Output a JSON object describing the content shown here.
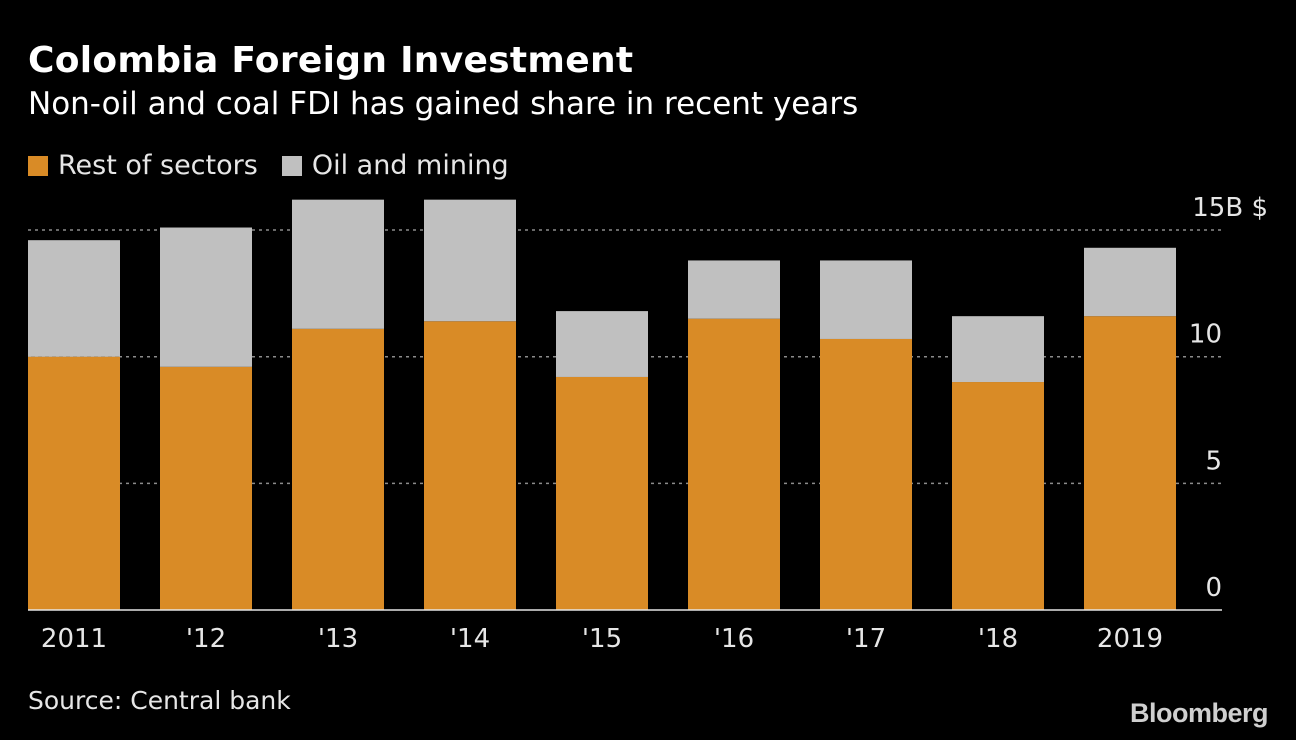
{
  "header": {
    "title": "Colombia Foreign Investment",
    "subtitle": "Non-oil and coal FDI has gained share in recent years"
  },
  "legend": {
    "items": [
      {
        "label": "Rest of sectors",
        "color": "#D98B26"
      },
      {
        "label": "Oil and mining",
        "color": "#C0C0C0"
      }
    ]
  },
  "footer": {
    "source": "Source: Central bank",
    "brand": "Bloomberg"
  },
  "chart_data": {
    "type": "bar",
    "stacked": true,
    "title": "Colombia Foreign Investment",
    "subtitle": "Non-oil and coal FDI has gained share in recent years",
    "categories": [
      "2011",
      "'12",
      "'13",
      "'14",
      "'15",
      "'16",
      "'17",
      "'18",
      "2019"
    ],
    "series": [
      {
        "name": "Rest of sectors",
        "color": "#D98B26",
        "values": [
          10.0,
          9.6,
          11.1,
          11.4,
          9.2,
          11.5,
          10.7,
          9.0,
          11.6
        ]
      },
      {
        "name": "Oil and mining",
        "color": "#C0C0C0",
        "values": [
          4.6,
          5.5,
          5.1,
          4.8,
          2.6,
          2.3,
          3.1,
          2.6,
          2.7
        ]
      }
    ],
    "y_ticks": [
      0,
      5,
      10,
      15
    ],
    "y_tick_labels": [
      "0",
      "5",
      "10",
      "15B $"
    ],
    "ylim": [
      0,
      15
    ],
    "grid": true,
    "legend_position": "top-left",
    "axis_side": "right"
  }
}
